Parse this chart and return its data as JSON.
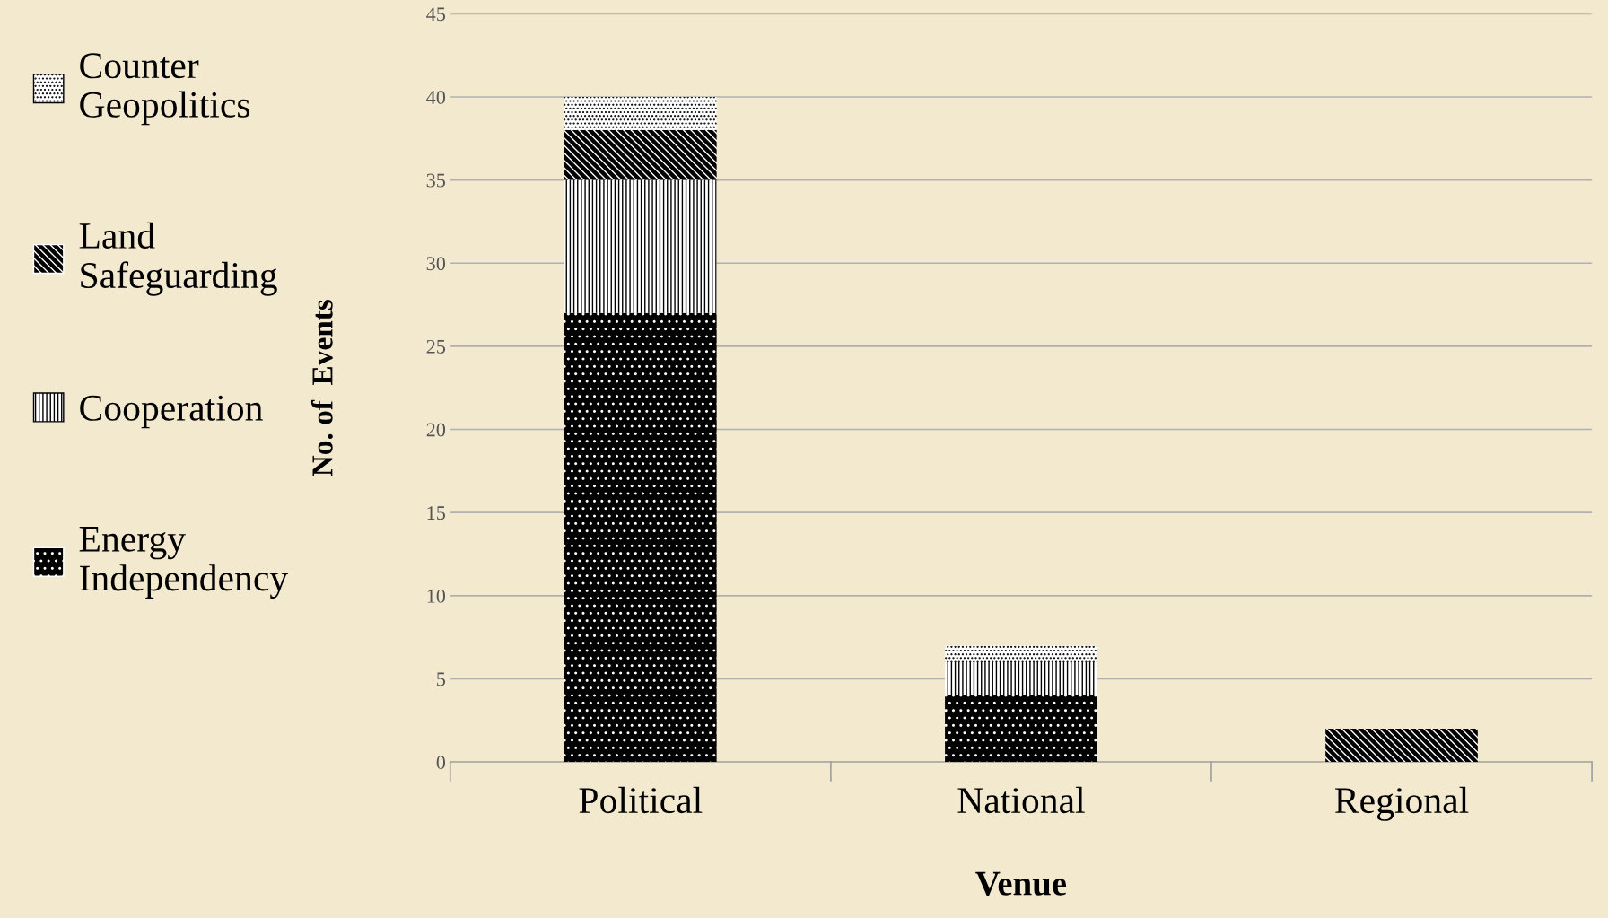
{
  "chart_data": {
    "type": "bar",
    "stacked": true,
    "xlabel": "Venue",
    "ylabel": "No. of  Events",
    "categories": [
      "Political",
      "National",
      "Regional"
    ],
    "series": [
      {
        "name": "Energy Independency",
        "color": "#000000",
        "values": [
          27,
          4,
          0
        ]
      },
      {
        "name": "Cooperation",
        "color": "#ffffff",
        "values": [
          8,
          2,
          0
        ]
      },
      {
        "name": "Land Safeguarding",
        "color": "#000000",
        "values": [
          3,
          0,
          2
        ]
      },
      {
        "name": "Counter Geopolitics",
        "color": "#ffffff",
        "values": [
          2,
          1,
          0
        ]
      }
    ],
    "ylim": [
      0,
      45
    ],
    "yticks": [
      0,
      5,
      10,
      15,
      20,
      25,
      30,
      35,
      40,
      45
    ],
    "grid": "y",
    "legend": "left"
  }
}
